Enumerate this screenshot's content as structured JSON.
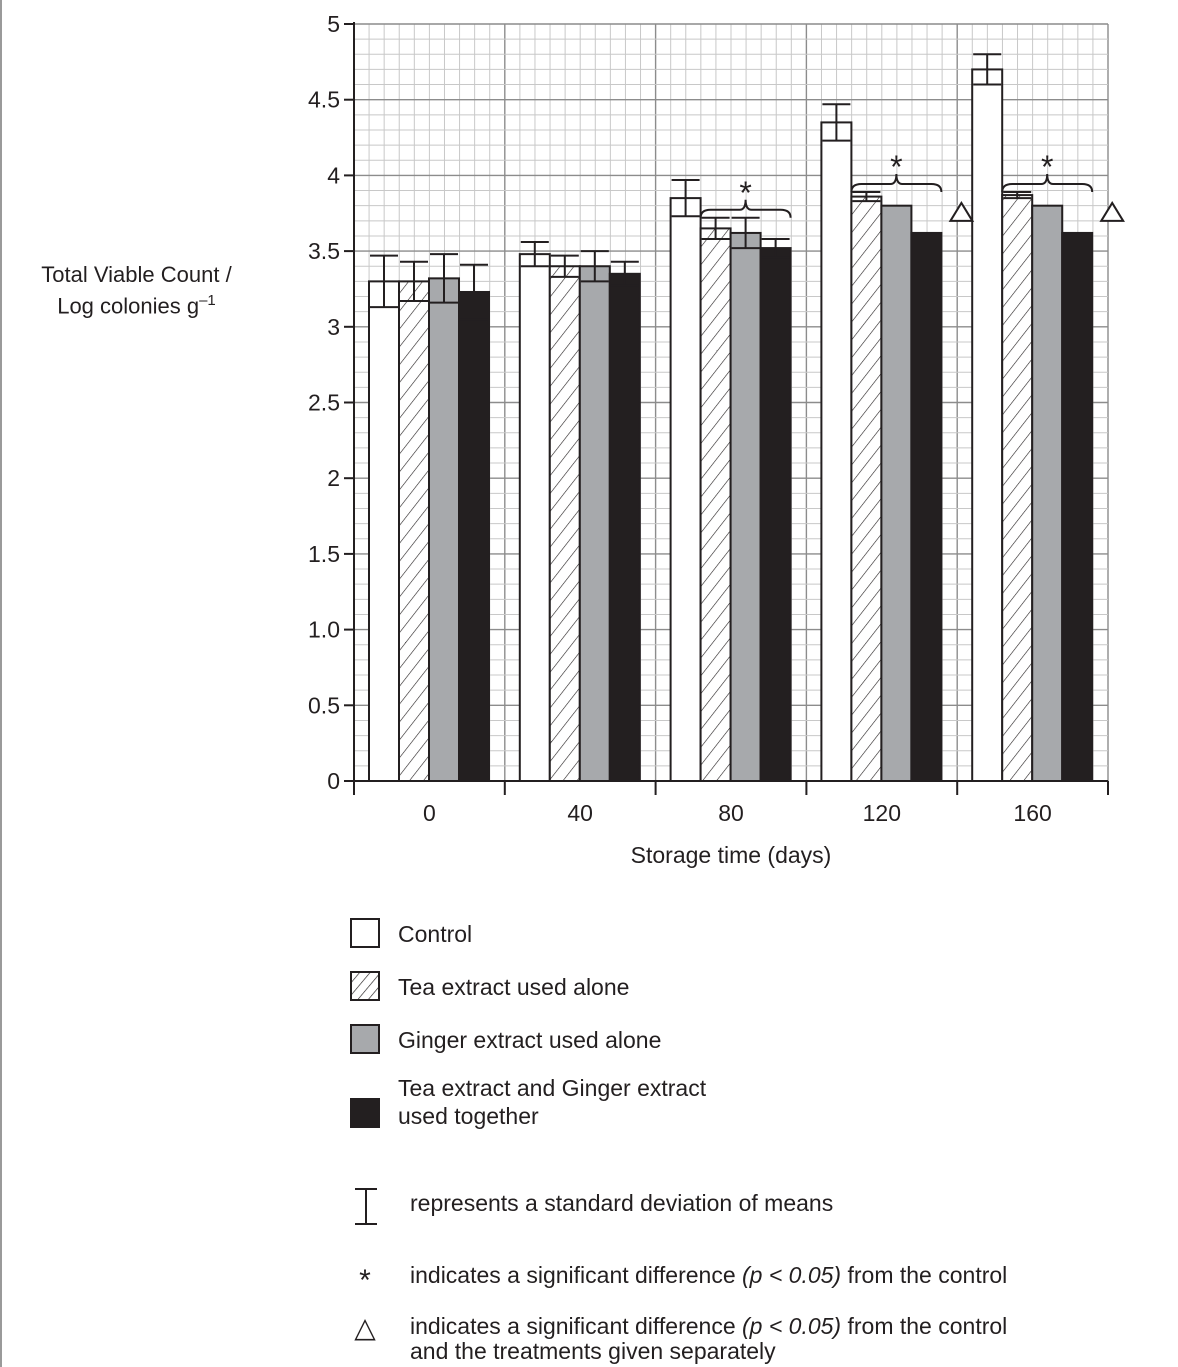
{
  "chart_data": {
    "type": "bar",
    "xlabel": "Storage time (days)",
    "ylabel_line1": "Total Viable Count /",
    "ylabel_line2": "Log colonies g",
    "ylabel_superscript": "–1",
    "categories": [
      "0",
      "40",
      "80",
      "120",
      "160"
    ],
    "yticks": [
      "0",
      "0.5",
      "1.0",
      "1.5",
      "2",
      "2.5",
      "3",
      "3.5",
      "4",
      "4.5",
      "5"
    ],
    "ytick_values": [
      0,
      0.5,
      1.0,
      1.5,
      2,
      2.5,
      3,
      3.5,
      4,
      4.5,
      5
    ],
    "ylim": [
      0,
      5
    ],
    "grid": true,
    "series": [
      {
        "name": "Control",
        "fill": "white",
        "values": [
          3.3,
          3.48,
          3.85,
          4.35,
          4.7
        ],
        "errors": [
          0.17,
          0.08,
          0.12,
          0.12,
          0.1
        ]
      },
      {
        "name": "Tea extract used alone",
        "fill": "hatch",
        "values": [
          3.3,
          3.4,
          3.65,
          3.86,
          3.87
        ],
        "errors": [
          0.13,
          0.07,
          0.07,
          0.03,
          0.02
        ]
      },
      {
        "name": "Ginger extract used alone",
        "fill": "gray",
        "values": [
          3.32,
          3.4,
          3.62,
          3.8,
          3.8
        ],
        "errors": [
          0.16,
          0.1,
          0.1,
          0.0,
          0.0
        ]
      },
      {
        "name": "Tea extract and Ginger extract used together",
        "fill": "black",
        "values": [
          3.23,
          3.35,
          3.52,
          3.62,
          3.62
        ],
        "errors": [
          0.18,
          0.08,
          0.06,
          0.0,
          0.0
        ]
      }
    ],
    "significance": [
      {
        "category": "80",
        "symbol": "*",
        "bracket": true
      },
      {
        "category": "120",
        "symbol": "*",
        "bracket": true,
        "triangle": true
      },
      {
        "category": "160",
        "symbol": "*",
        "bracket": true,
        "triangle": true
      }
    ]
  },
  "legend": [
    {
      "label": "Control",
      "fill": "white"
    },
    {
      "label": "Tea extract used alone",
      "fill": "hatch"
    },
    {
      "label": "Ginger extract used alone",
      "fill": "gray"
    },
    {
      "label_line1": "Tea extract and Ginger extract",
      "label_line2": "used together",
      "fill": "black"
    }
  ],
  "notes": {
    "errorbar_text": "represents a standard deviation of means",
    "star_symbol": "*",
    "star_text_a": "indicates a significant difference",
    "star_text_p": "(p < 0.05)",
    "star_text_b": "from the control",
    "triangle_symbol": "△",
    "triangle_text_a": "indicates a significant difference",
    "triangle_text_p": "(p < 0.05)",
    "triangle_text_b": "from the control",
    "triangle_text_line2": "and the treatments given separately"
  },
  "colors": {
    "ink": "#231f20",
    "gray_bar": "#a7a9ac",
    "grid_minor": "#c8c8c8",
    "grid_major": "#8c8c8c"
  }
}
